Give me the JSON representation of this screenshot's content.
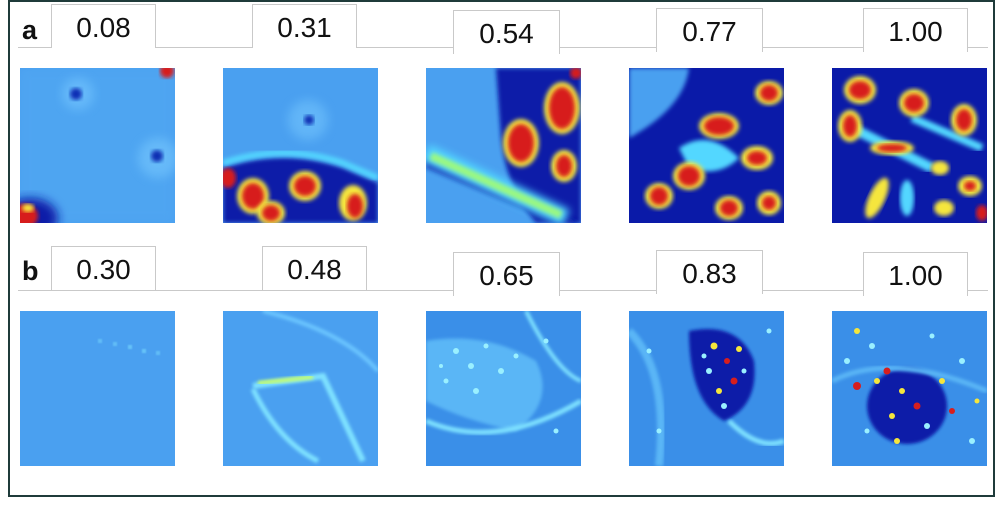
{
  "panels": [
    {
      "label": "a",
      "values": [
        "0.08",
        "0.31",
        "0.54",
        "0.77",
        "1.00"
      ],
      "colormap": "jet",
      "background_blue": "#4aa0f0"
    },
    {
      "label": "b",
      "values": [
        "0.30",
        "0.48",
        "0.65",
        "0.83",
        "1.00"
      ],
      "colormap": "jet",
      "background_blue": "#4aa0f0"
    }
  ],
  "colors": {
    "frame_border": "#1f3b3a",
    "jet_red": "#d71e1e",
    "jet_dark_blue": "#0a1aa8",
    "jet_yellow": "#f5e63c",
    "jet_cyan": "#52d7ff"
  }
}
